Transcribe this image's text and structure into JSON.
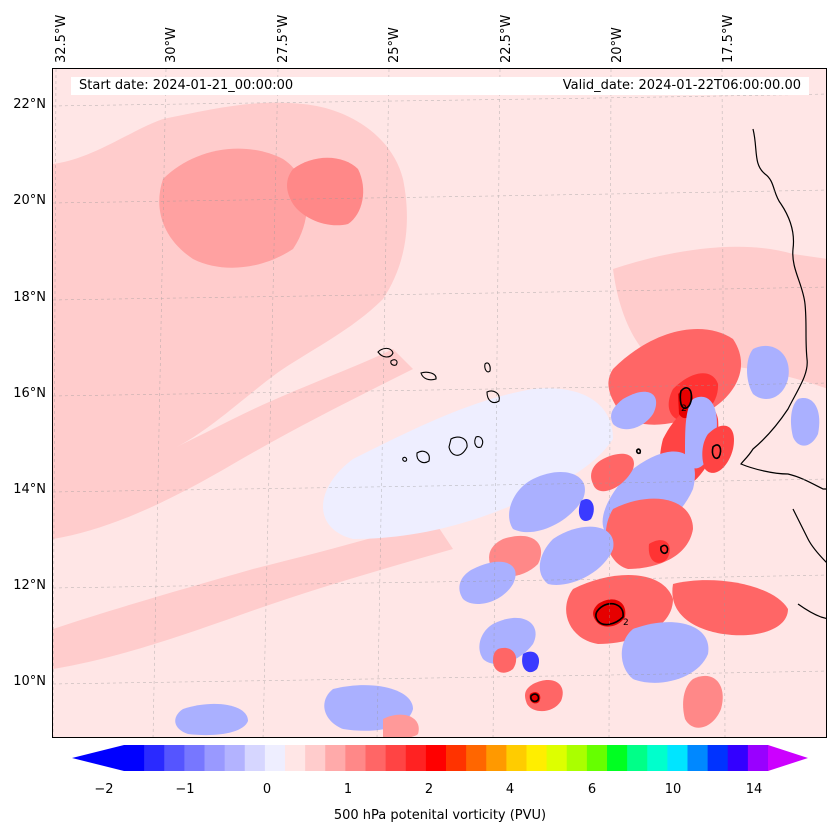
{
  "map": {
    "start_date_label": "Start date: 2024-01-21_00:00:00",
    "valid_date_label": "Valid_date: 2024-01-22T06:00:00.00",
    "longitude_labels": [
      "32.5°W",
      "30°W",
      "27.5°W",
      "25°W",
      "22.5°W",
      "20°W",
      "17.5°W"
    ],
    "latitude_labels": [
      "22°N",
      "20°N",
      "18°N",
      "16°N",
      "14°N",
      "12°N",
      "10°N"
    ],
    "contour_label": "2",
    "colors": {
      "background": "#ffe6e6",
      "light_pink": "#ffcccc",
      "pink": "#ff9999",
      "red": "#ff3333",
      "dark_red": "#e60000",
      "light_blue": "#eaeaff",
      "blue": "#aab0ff",
      "dark_blue": "#3a3aff"
    }
  },
  "colorbar": {
    "label": "500 hPa potenital vorticity (PVU)",
    "tick_labels": [
      "−2",
      "−1",
      "0",
      "1",
      "2",
      "4",
      "6",
      "10",
      "14"
    ],
    "colors": [
      "#0000ff",
      "#2a2aff",
      "#5555ff",
      "#7777ff",
      "#9999ff",
      "#b3b3ff",
      "#d6d6ff",
      "#eeeeff",
      "#ffe6e6",
      "#ffcccc",
      "#ffaaaa",
      "#ff8888",
      "#ff6666",
      "#ff4444",
      "#ff2222",
      "#ff0000",
      "#ff3300",
      "#ff6600",
      "#ff9900",
      "#ffcc00",
      "#ffee00",
      "#ddff00",
      "#aaff00",
      "#66ff00",
      "#00ff22",
      "#00ff88",
      "#00ffcc",
      "#00e5ff",
      "#0088ff",
      "#0033ff",
      "#3300ff",
      "#9900ff"
    ],
    "extend_min_color": "#0000ff",
    "extend_max_color": "#cc00ff"
  }
}
